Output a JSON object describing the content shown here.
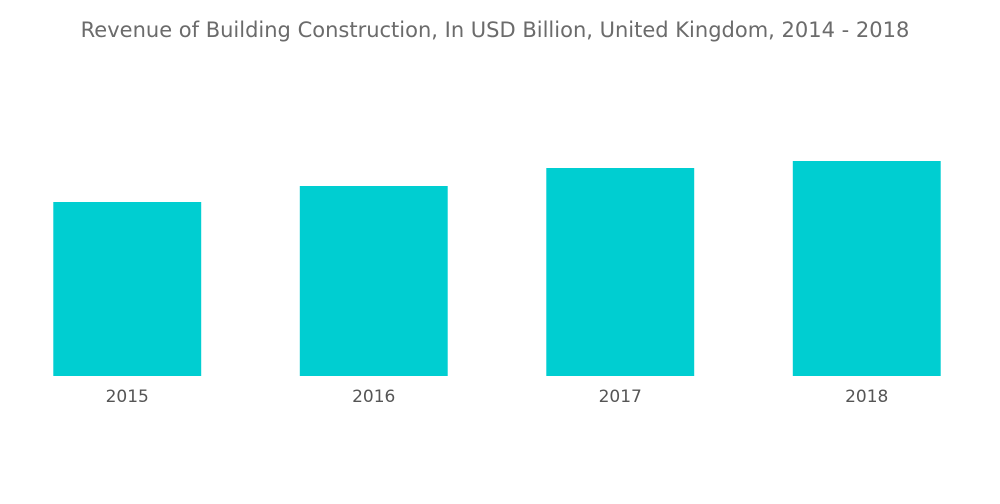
{
  "chart_data": {
    "type": "bar",
    "title": "Revenue of Building Construction, In USD Billion, United Kingdom, 2014 - 2018",
    "categories": [
      "2015",
      "2016",
      "2017",
      "2018"
    ],
    "values": [
      174,
      190,
      208,
      215
    ],
    "color": "#00ced1"
  }
}
